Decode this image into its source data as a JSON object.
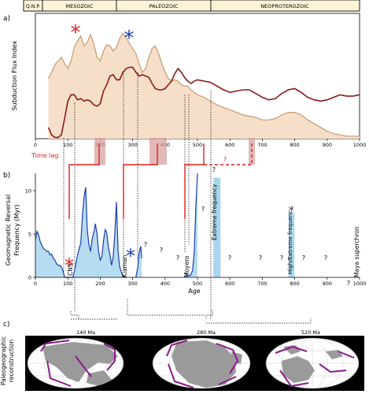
{
  "eras": [
    "Q.N.P.",
    "MESOZOIC",
    "PALEOZOIC",
    "NEOPROTEROZOIC"
  ],
  "panel_a": {
    "label": "a)",
    "ylabel": "Subduction Flux Index",
    "asterisk": "*"
  },
  "time_lag_label": "Time lag",
  "question_mark": "?",
  "panel_b": {
    "label": "b)",
    "ylabel_line1": "Geomagnetic Reversal",
    "ylabel_line2": "Frequency (Myr)",
    "xlabel": "Age",
    "asterisk": "*",
    "annotations": {
      "cns": "CNS",
      "kiaman": "Kiaman",
      "moyero": "Moyero",
      "extreme": "Extreme frequency",
      "high_extreme": "High/Extreme frequency",
      "maya": "Maya superchron"
    }
  },
  "panel_c": {
    "label": "c)",
    "ylabel_line1": "Paleogeographic",
    "ylabel_line2": "reconstruction",
    "maps": [
      {
        "label": "140 Ma"
      },
      {
        "label": "280 Ma"
      },
      {
        "label": "520 Ma"
      }
    ]
  },
  "chart_data": [
    {
      "type": "area",
      "panel": "a",
      "ylabel": "Subduction Flux Index",
      "xlim": [
        0,
        1000
      ],
      "xticks": [
        0,
        100,
        200,
        300,
        400,
        500,
        600,
        700,
        800,
        900,
        1000
      ],
      "series": [
        {
          "color": "#8b1a1a",
          "x": [
            40,
            50,
            60,
            70,
            80,
            90,
            100,
            110,
            120,
            130,
            140,
            150,
            160,
            170,
            180,
            190,
            200,
            210,
            220,
            230,
            240,
            250,
            260,
            270,
            280,
            290,
            300,
            310,
            320,
            330,
            340,
            350,
            360,
            370,
            380,
            390,
            400,
            410,
            420,
            430,
            440,
            450,
            460,
            470,
            480,
            490,
            500,
            520,
            540,
            560,
            580,
            600,
            620,
            640,
            660,
            680,
            700,
            720,
            740,
            760,
            780,
            800,
            820,
            840,
            860,
            880,
            900,
            920,
            940,
            960,
            980,
            1000
          ],
          "values": [
            0.9,
            0.3,
            0.1,
            0.1,
            0.3,
            1.6,
            3.0,
            3.5,
            3.5,
            3.1,
            3.2,
            3.0,
            3.1,
            3.0,
            2.7,
            2.6,
            2.8,
            3.8,
            4.3,
            5.0,
            5.1,
            4.7,
            4.7,
            5.3,
            5.6,
            5.7,
            5.7,
            5.3,
            5.0,
            5.1,
            5.0,
            4.9,
            4.4,
            4.0,
            3.9,
            3.9,
            4.0,
            4.3,
            4.6,
            5.2,
            5.6,
            5.3,
            4.9,
            4.6,
            4.4,
            4.6,
            4.7,
            4.6,
            4.5,
            4.2,
            3.9,
            3.7,
            3.8,
            3.9,
            3.9,
            3.6,
            3.3,
            3.1,
            3.2,
            3.6,
            3.9,
            4.0,
            3.7,
            3.3,
            3.1,
            3.0,
            3.1,
            3.3,
            3.5,
            3.4,
            3.4,
            3.5
          ]
        },
        {
          "color": "#c79a6e",
          "x": [
            40,
            50,
            60,
            70,
            80,
            90,
            100,
            110,
            120,
            130,
            140,
            150,
            160,
            170,
            180,
            190,
            200,
            210,
            220,
            230,
            240,
            250,
            260,
            270,
            280,
            290,
            300,
            310,
            320,
            330,
            340,
            350,
            360,
            370,
            380,
            390,
            400,
            410,
            420,
            430,
            440,
            450,
            460,
            470,
            480,
            490,
            500,
            520,
            540,
            560,
            580,
            600,
            620,
            640,
            660,
            680,
            700,
            720,
            740,
            760,
            780,
            800,
            820,
            840,
            860,
            880,
            900,
            920,
            940,
            960,
            980,
            1000
          ],
          "values": [
            4.8,
            5.3,
            5.9,
            6.2,
            6.5,
            6.0,
            5.6,
            6.2,
            7.3,
            7.8,
            8.2,
            7.4,
            7.7,
            8.3,
            7.6,
            6.5,
            6.2,
            7.0,
            7.5,
            7.4,
            7.0,
            7.3,
            8.0,
            8.4,
            8.1,
            7.6,
            7.2,
            6.8,
            6.0,
            5.3,
            5.6,
            6.5,
            7.2,
            7.4,
            6.8,
            6.0,
            5.3,
            4.8,
            4.6,
            4.7,
            4.6,
            4.3,
            4.2,
            4.2,
            3.9,
            3.7,
            3.5,
            3.3,
            3.0,
            2.7,
            2.5,
            2.3,
            2.1,
            1.9,
            1.8,
            1.7,
            1.5,
            1.5,
            1.6,
            1.9,
            2.1,
            2.1,
            1.9,
            1.5,
            1.2,
            0.9,
            0.6,
            0.4,
            0.3,
            0.2,
            0.2,
            0.2
          ]
        }
      ]
    },
    {
      "type": "area",
      "panel": "b",
      "xlabel": "Age",
      "ylabel": "Geomagnetic Reversal Frequency (Myr)",
      "xlim": [
        0,
        1000
      ],
      "ylim": [
        0,
        12
      ],
      "xticks": [
        0,
        100,
        200,
        300,
        400,
        500,
        600,
        700,
        800,
        900,
        1000
      ],
      "yticks": [
        0,
        5,
        10
      ],
      "series": [
        {
          "color": "#1a3cb0",
          "x": [
            0,
            5,
            10,
            15,
            20,
            25,
            30,
            35,
            40,
            45,
            50,
            55,
            60,
            65,
            70,
            75,
            80,
            85,
            90,
            95,
            100,
            105,
            110,
            115,
            120,
            125,
            130,
            135,
            140,
            145,
            150,
            155,
            160,
            165,
            170,
            175,
            180,
            185,
            190,
            195,
            200,
            205,
            210,
            215,
            220,
            225,
            230,
            235,
            240,
            245,
            250,
            255,
            260,
            265,
            270,
            275,
            280
          ],
          "values": [
            4.4,
            5.3,
            4.9,
            4.1,
            3.7,
            3.3,
            3.2,
            3.0,
            3.0,
            2.6,
            2.7,
            2.2,
            2.0,
            1.6,
            1.4,
            1.4,
            1.2,
            0.8,
            0.0,
            0.0,
            0.0,
            0.0,
            0.0,
            0.0,
            0.6,
            1.6,
            2.6,
            3.3,
            4.0,
            7.0,
            9.2,
            10.4,
            5.5,
            3.8,
            3.0,
            4.4,
            5.2,
            6.2,
            5.0,
            3.0,
            2.0,
            2.4,
            4.2,
            5.5,
            5.2,
            3.5,
            2.6,
            1.4,
            2.4,
            5.0,
            8.7,
            3.0,
            1.2,
            0.6,
            0.2,
            0.0,
            0.0
          ]
        },
        {
          "color": "#1a3cb0",
          "x": [
            310,
            315,
            320,
            325,
            328
          ],
          "values": [
            0.0,
            1.0,
            2.8,
            3.6,
            2.2
          ]
        },
        {
          "color": "#1a3cb0",
          "x": [
            460,
            470,
            478,
            485,
            490,
            495,
            500
          ],
          "values": [
            0.5,
            0.3,
            0.2,
            0.8,
            3.0,
            8.0,
            12.0
          ]
        }
      ],
      "bars": [
        {
          "x_range": [
            549,
            571
          ],
          "value": 11.5,
          "color": "#a8d6ee",
          "label": "Extreme frequency"
        },
        {
          "x_range": [
            781,
            799
          ],
          "value": 7.5,
          "color": "#a8d6ee",
          "label": "High/Extreme frequency"
        }
      ],
      "annotations": [
        "CNS",
        "Kiaman",
        "Moyero",
        "Extreme frequency",
        "High/Extreme frequency",
        "Maya superchron"
      ]
    }
  ],
  "colors": {
    "area_fill_a": "#f6dfc8",
    "line_dark_red": "#8b1a1a",
    "line_tan": "#c79a6e",
    "area_fill_b": "#b6dcf2",
    "line_blue": "#1a3cb0",
    "time_lag_red": "#e02020",
    "lag_box": "#d9a0a0",
    "asterisk_red": "#e02020",
    "asterisk_blue": "#1a3cb0",
    "continent_gray": "#9a9a9a",
    "boundary_purple": "#8a1a8a",
    "map_band": "#000000"
  }
}
